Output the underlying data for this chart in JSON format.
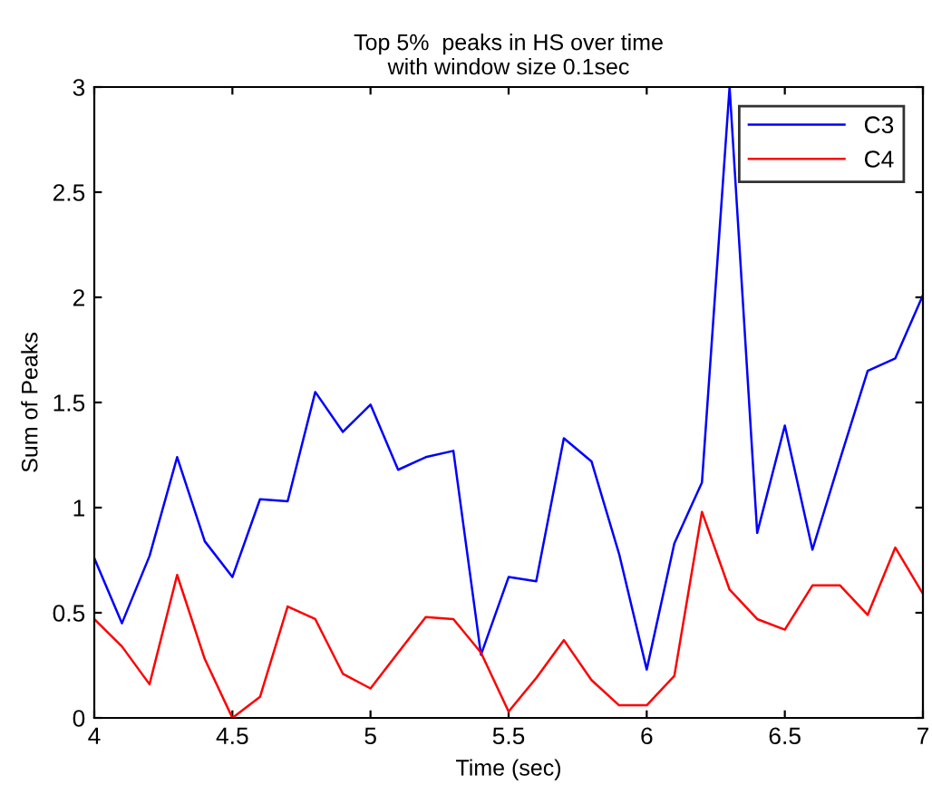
{
  "chart_data": {
    "type": "line",
    "title": "Top 5%  peaks in HS over time\nwith window size 0.1sec",
    "xlabel": "Time (sec)",
    "ylabel": "Sum of Peaks",
    "x": [
      4.0,
      4.1,
      4.2,
      4.3,
      4.4,
      4.5,
      4.6,
      4.7,
      4.8,
      4.9,
      5.0,
      5.1,
      5.2,
      5.3,
      5.4,
      5.5,
      5.6,
      5.7,
      5.8,
      5.9,
      6.0,
      6.1,
      6.2,
      6.3,
      6.4,
      6.5,
      6.6,
      6.7,
      6.8,
      6.9,
      7.0
    ],
    "series": [
      {
        "name": "C3",
        "color": "#0000ff",
        "values": [
          0.76,
          0.45,
          0.77,
          1.24,
          0.84,
          0.67,
          1.04,
          1.03,
          1.55,
          1.36,
          1.49,
          1.18,
          1.24,
          1.27,
          0.3,
          0.67,
          0.65,
          1.33,
          1.22,
          0.78,
          0.23,
          0.83,
          1.12,
          3.0,
          0.88,
          1.39,
          0.8,
          1.23,
          1.65,
          1.71,
          2.01
        ]
      },
      {
        "name": "C4",
        "color": "#ff0000",
        "values": [
          0.47,
          0.34,
          0.16,
          0.68,
          0.28,
          0.0,
          0.1,
          0.53,
          0.47,
          0.21,
          0.14,
          0.31,
          0.48,
          0.47,
          0.31,
          0.03,
          0.19,
          0.37,
          0.18,
          0.06,
          0.06,
          0.2,
          0.98,
          0.61,
          0.47,
          0.42,
          0.63,
          0.63,
          0.49,
          0.81,
          0.59
        ]
      }
    ],
    "xlim": [
      4,
      7
    ],
    "xticks": [
      4,
      4.5,
      5,
      5.5,
      6,
      6.5,
      7
    ],
    "ylim": [
      0,
      3
    ],
    "yticks": [
      0,
      0.5,
      1,
      1.5,
      2,
      2.5,
      3
    ],
    "legend": "top right",
    "grid": false
  }
}
